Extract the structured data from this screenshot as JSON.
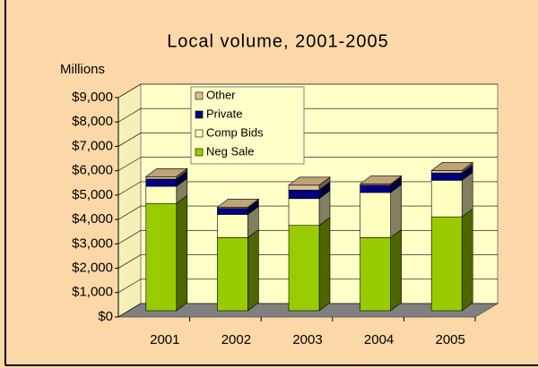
{
  "chart_data": {
    "type": "bar3d_stacked",
    "title": "Local volume, 2001-2005",
    "y_label": "Millions",
    "categories": [
      "2001",
      "2002",
      "2003",
      "2004",
      "2005"
    ],
    "series": [
      {
        "name": "Neg Sale",
        "color": "#99cc00",
        "values": [
          4400,
          3000,
          3500,
          3000,
          3850
        ]
      },
      {
        "name": "Comp Bids",
        "color": "#ffffc0",
        "values": [
          700,
          950,
          1100,
          1850,
          1500
        ]
      },
      {
        "name": "Private",
        "color": "#000080",
        "values": [
          300,
          250,
          350,
          300,
          300
        ]
      },
      {
        "name": "Other",
        "color": "#e0bf90",
        "values": [
          100,
          50,
          200,
          50,
          100
        ]
      }
    ],
    "ylim": [
      0,
      9000
    ],
    "yticks": [
      {
        "value": 0,
        "label": "$0"
      },
      {
        "value": 1000,
        "label": "$1,000"
      },
      {
        "value": 2000,
        "label": "$2,000"
      },
      {
        "value": 3000,
        "label": "$3,000"
      },
      {
        "value": 4000,
        "label": "$4,000"
      },
      {
        "value": 5000,
        "label": "$5,000"
      },
      {
        "value": 6000,
        "label": "$6,000"
      },
      {
        "value": 7000,
        "label": "$7,000"
      },
      {
        "value": 8000,
        "label": "$8,000"
      },
      {
        "value": 9000,
        "label": "$9,000"
      }
    ],
    "grid": true
  }
}
